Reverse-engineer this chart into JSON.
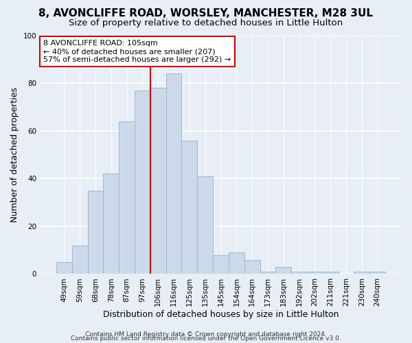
{
  "title": "8, AVONCLIFFE ROAD, WORSLEY, MANCHESTER, M28 3UL",
  "subtitle": "Size of property relative to detached houses in Little Hulton",
  "xlabel": "Distribution of detached houses by size in Little Hulton",
  "ylabel": "Number of detached properties",
  "categories": [
    "49sqm",
    "59sqm",
    "68sqm",
    "78sqm",
    "87sqm",
    "97sqm",
    "106sqm",
    "116sqm",
    "125sqm",
    "135sqm",
    "145sqm",
    "154sqm",
    "164sqm",
    "173sqm",
    "183sqm",
    "192sqm",
    "202sqm",
    "211sqm",
    "221sqm",
    "230sqm",
    "240sqm"
  ],
  "values": [
    5,
    12,
    35,
    42,
    64,
    77,
    78,
    84,
    56,
    41,
    8,
    9,
    6,
    1,
    3,
    1,
    1,
    1,
    0,
    1,
    1
  ],
  "bar_color": "#ccd9ea",
  "bar_edge_color": "#a0b8d0",
  "vline_x_index": 6,
  "vline_color": "#cc0000",
  "annotation_line1": "8 AVONCLIFFE ROAD: 105sqm",
  "annotation_line2": "← 40% of detached houses are smaller (207)",
  "annotation_line3": "57% of semi-detached houses are larger (292) →",
  "annotation_box_color": "#ffffff",
  "annotation_box_edge": "#cc0000",
  "ylim": [
    0,
    100
  ],
  "yticks": [
    0,
    20,
    40,
    60,
    80,
    100
  ],
  "footer_line1": "Contains HM Land Registry data © Crown copyright and database right 2024.",
  "footer_line2": "Contains public sector information licensed under the Open Government Licence v3.0.",
  "background_color": "#e8eef5",
  "grid_color": "#ffffff",
  "title_fontsize": 11,
  "subtitle_fontsize": 9.5,
  "axis_label_fontsize": 9,
  "tick_fontsize": 7.5,
  "annotation_fontsize": 8,
  "footer_fontsize": 6.5
}
